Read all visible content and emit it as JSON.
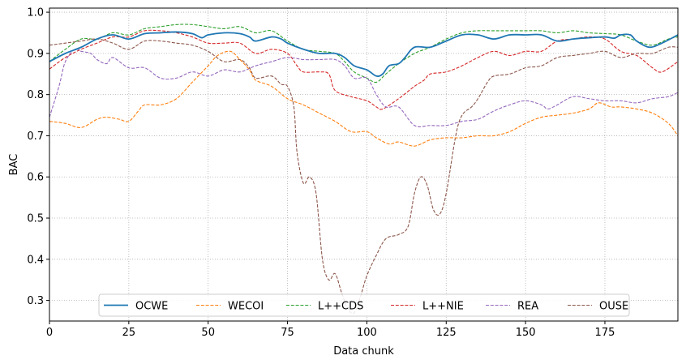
{
  "chart_data": {
    "type": "line",
    "xlabel": "Data chunk",
    "ylabel": "BAC",
    "xlim": [
      0,
      198
    ],
    "ylim": [
      0.25,
      1.01
    ],
    "xticks": [
      0,
      25,
      50,
      75,
      100,
      125,
      150,
      175
    ],
    "yticks": [
      0.3,
      0.4,
      0.5,
      0.6,
      0.7,
      0.8,
      0.9,
      1.0
    ],
    "xtick_labels": [
      "0",
      "25",
      "50",
      "75",
      "100",
      "125",
      "150",
      "175"
    ],
    "ytick_labels": [
      "0.3",
      "0.4",
      "0.5",
      "0.6",
      "0.7",
      "0.8",
      "0.9",
      "1.0"
    ],
    "grid": true,
    "legend_position": "bottom-center",
    "series": [
      {
        "name": "OCWE",
        "color": "#1f77b4",
        "dash": "solid",
        "points": [
          [
            0,
            0.88
          ],
          [
            5,
            0.9
          ],
          [
            10,
            0.915
          ],
          [
            15,
            0.935
          ],
          [
            20,
            0.945
          ],
          [
            25,
            0.935
          ],
          [
            30,
            0.948
          ],
          [
            35,
            0.95
          ],
          [
            40,
            0.952
          ],
          [
            45,
            0.948
          ],
          [
            48,
            0.938
          ],
          [
            50,
            0.945
          ],
          [
            55,
            0.95
          ],
          [
            60,
            0.948
          ],
          [
            63,
            0.94
          ],
          [
            65,
            0.93
          ],
          [
            70,
            0.94
          ],
          [
            73,
            0.935
          ],
          [
            75,
            0.925
          ],
          [
            80,
            0.91
          ],
          [
            85,
            0.9
          ],
          [
            90,
            0.9
          ],
          [
            93,
            0.89
          ],
          [
            96,
            0.87
          ],
          [
            100,
            0.86
          ],
          [
            103,
            0.845
          ],
          [
            105,
            0.85
          ],
          [
            107,
            0.87
          ],
          [
            110,
            0.875
          ],
          [
            112,
            0.89
          ],
          [
            115,
            0.915
          ],
          [
            120,
            0.915
          ],
          [
            125,
            0.93
          ],
          [
            130,
            0.945
          ],
          [
            135,
            0.945
          ],
          [
            140,
            0.935
          ],
          [
            145,
            0.945
          ],
          [
            150,
            0.945
          ],
          [
            155,
            0.945
          ],
          [
            160,
            0.93
          ],
          [
            165,
            0.935
          ],
          [
            170,
            0.938
          ],
          [
            175,
            0.94
          ],
          [
            178,
            0.937
          ],
          [
            180,
            0.945
          ],
          [
            183,
            0.945
          ],
          [
            185,
            0.93
          ],
          [
            189,
            0.915
          ],
          [
            193,
            0.925
          ],
          [
            198,
            0.945
          ]
        ]
      },
      {
        "name": "WECOI",
        "color": "#ff7f0e",
        "dash": "dashed",
        "points": [
          [
            0,
            0.735
          ],
          [
            5,
            0.73
          ],
          [
            10,
            0.72
          ],
          [
            15,
            0.74
          ],
          [
            18,
            0.745
          ],
          [
            22,
            0.74
          ],
          [
            25,
            0.735
          ],
          [
            28,
            0.76
          ],
          [
            30,
            0.775
          ],
          [
            35,
            0.775
          ],
          [
            40,
            0.79
          ],
          [
            45,
            0.83
          ],
          [
            50,
            0.87
          ],
          [
            53,
            0.895
          ],
          [
            57,
            0.905
          ],
          [
            60,
            0.885
          ],
          [
            63,
            0.86
          ],
          [
            65,
            0.835
          ],
          [
            70,
            0.82
          ],
          [
            75,
            0.79
          ],
          [
            80,
            0.775
          ],
          [
            85,
            0.755
          ],
          [
            90,
            0.735
          ],
          [
            95,
            0.71
          ],
          [
            100,
            0.71
          ],
          [
            103,
            0.695
          ],
          [
            107,
            0.68
          ],
          [
            110,
            0.685
          ],
          [
            115,
            0.675
          ],
          [
            120,
            0.69
          ],
          [
            125,
            0.695
          ],
          [
            130,
            0.695
          ],
          [
            135,
            0.7
          ],
          [
            140,
            0.7
          ],
          [
            145,
            0.71
          ],
          [
            150,
            0.73
          ],
          [
            155,
            0.745
          ],
          [
            160,
            0.75
          ],
          [
            165,
            0.755
          ],
          [
            170,
            0.765
          ],
          [
            173,
            0.78
          ],
          [
            177,
            0.77
          ],
          [
            180,
            0.77
          ],
          [
            185,
            0.765
          ],
          [
            190,
            0.755
          ],
          [
            195,
            0.73
          ],
          [
            198,
            0.7
          ]
        ]
      },
      {
        "name": "L++CDS",
        "color": "#2ca02c",
        "dash": "dashed",
        "points": [
          [
            0,
            0.88
          ],
          [
            5,
            0.91
          ],
          [
            10,
            0.935
          ],
          [
            15,
            0.935
          ],
          [
            20,
            0.95
          ],
          [
            25,
            0.945
          ],
          [
            30,
            0.96
          ],
          [
            35,
            0.965
          ],
          [
            40,
            0.97
          ],
          [
            45,
            0.97
          ],
          [
            50,
            0.965
          ],
          [
            55,
            0.96
          ],
          [
            60,
            0.965
          ],
          [
            65,
            0.95
          ],
          [
            70,
            0.955
          ],
          [
            75,
            0.93
          ],
          [
            80,
            0.91
          ],
          [
            85,
            0.905
          ],
          [
            90,
            0.9
          ],
          [
            93,
            0.88
          ],
          [
            96,
            0.855
          ],
          [
            100,
            0.84
          ],
          [
            103,
            0.83
          ],
          [
            106,
            0.85
          ],
          [
            110,
            0.875
          ],
          [
            115,
            0.9
          ],
          [
            120,
            0.915
          ],
          [
            125,
            0.935
          ],
          [
            130,
            0.95
          ],
          [
            135,
            0.955
          ],
          [
            140,
            0.955
          ],
          [
            145,
            0.955
          ],
          [
            150,
            0.955
          ],
          [
            155,
            0.955
          ],
          [
            160,
            0.95
          ],
          [
            165,
            0.955
          ],
          [
            170,
            0.95
          ],
          [
            175,
            0.948
          ],
          [
            180,
            0.945
          ],
          [
            185,
            0.93
          ],
          [
            190,
            0.92
          ],
          [
            195,
            0.935
          ],
          [
            198,
            0.94
          ]
        ]
      },
      {
        "name": "L++NIE",
        "color": "#d62728",
        "dash": "dashed",
        "points": [
          [
            0,
            0.862
          ],
          [
            5,
            0.89
          ],
          [
            10,
            0.91
          ],
          [
            15,
            0.925
          ],
          [
            20,
            0.94
          ],
          [
            25,
            0.94
          ],
          [
            30,
            0.955
          ],
          [
            35,
            0.955
          ],
          [
            40,
            0.95
          ],
          [
            45,
            0.94
          ],
          [
            50,
            0.925
          ],
          [
            55,
            0.925
          ],
          [
            60,
            0.925
          ],
          [
            65,
            0.9
          ],
          [
            70,
            0.91
          ],
          [
            75,
            0.9
          ],
          [
            78,
            0.87
          ],
          [
            80,
            0.855
          ],
          [
            85,
            0.855
          ],
          [
            88,
            0.85
          ],
          [
            90,
            0.81
          ],
          [
            95,
            0.795
          ],
          [
            100,
            0.785
          ],
          [
            103,
            0.77
          ],
          [
            105,
            0.765
          ],
          [
            110,
            0.79
          ],
          [
            115,
            0.82
          ],
          [
            118,
            0.835
          ],
          [
            120,
            0.85
          ],
          [
            125,
            0.855
          ],
          [
            130,
            0.87
          ],
          [
            135,
            0.89
          ],
          [
            140,
            0.905
          ],
          [
            145,
            0.895
          ],
          [
            150,
            0.905
          ],
          [
            155,
            0.905
          ],
          [
            160,
            0.93
          ],
          [
            165,
            0.935
          ],
          [
            170,
            0.94
          ],
          [
            175,
            0.935
          ],
          [
            180,
            0.905
          ],
          [
            185,
            0.895
          ],
          [
            190,
            0.865
          ],
          [
            193,
            0.855
          ],
          [
            198,
            0.88
          ]
        ]
      },
      {
        "name": "REA",
        "color": "#9467bd",
        "dash": "dashed",
        "points": [
          [
            0,
            0.745
          ],
          [
            3,
            0.82
          ],
          [
            5,
            0.88
          ],
          [
            8,
            0.91
          ],
          [
            10,
            0.905
          ],
          [
            13,
            0.9
          ],
          [
            15,
            0.885
          ],
          [
            18,
            0.875
          ],
          [
            20,
            0.89
          ],
          [
            25,
            0.865
          ],
          [
            30,
            0.865
          ],
          [
            35,
            0.84
          ],
          [
            40,
            0.84
          ],
          [
            45,
            0.855
          ],
          [
            50,
            0.845
          ],
          [
            55,
            0.86
          ],
          [
            60,
            0.855
          ],
          [
            65,
            0.87
          ],
          [
            70,
            0.88
          ],
          [
            75,
            0.89
          ],
          [
            80,
            0.885
          ],
          [
            85,
            0.885
          ],
          [
            90,
            0.885
          ],
          [
            93,
            0.87
          ],
          [
            96,
            0.84
          ],
          [
            100,
            0.84
          ],
          [
            103,
            0.8
          ],
          [
            106,
            0.77
          ],
          [
            110,
            0.77
          ],
          [
            115,
            0.725
          ],
          [
            120,
            0.725
          ],
          [
            125,
            0.725
          ],
          [
            130,
            0.735
          ],
          [
            135,
            0.74
          ],
          [
            140,
            0.76
          ],
          [
            145,
            0.775
          ],
          [
            150,
            0.785
          ],
          [
            155,
            0.775
          ],
          [
            157,
            0.765
          ],
          [
            160,
            0.775
          ],
          [
            165,
            0.795
          ],
          [
            170,
            0.79
          ],
          [
            175,
            0.785
          ],
          [
            180,
            0.785
          ],
          [
            185,
            0.78
          ],
          [
            190,
            0.79
          ],
          [
            195,
            0.795
          ],
          [
            198,
            0.805
          ]
        ]
      },
      {
        "name": "OUSE",
        "color": "#8c564b",
        "dash": "dashed",
        "points": [
          [
            0,
            0.92
          ],
          [
            5,
            0.925
          ],
          [
            10,
            0.93
          ],
          [
            15,
            0.935
          ],
          [
            20,
            0.925
          ],
          [
            25,
            0.91
          ],
          [
            30,
            0.93
          ],
          [
            35,
            0.93
          ],
          [
            40,
            0.925
          ],
          [
            45,
            0.92
          ],
          [
            50,
            0.905
          ],
          [
            55,
            0.88
          ],
          [
            60,
            0.885
          ],
          [
            63,
            0.865
          ],
          [
            65,
            0.84
          ],
          [
            70,
            0.845
          ],
          [
            73,
            0.825
          ],
          [
            75,
            0.82
          ],
          [
            77,
            0.77
          ],
          [
            78,
            0.66
          ],
          [
            80,
            0.585
          ],
          [
            82,
            0.6
          ],
          [
            84,
            0.56
          ],
          [
            86,
            0.4
          ],
          [
            88,
            0.35
          ],
          [
            90,
            0.365
          ],
          [
            92,
            0.32
          ],
          [
            94,
            0.28
          ],
          [
            96,
            0.27
          ],
          [
            98,
            0.31
          ],
          [
            100,
            0.36
          ],
          [
            103,
            0.41
          ],
          [
            106,
            0.45
          ],
          [
            110,
            0.46
          ],
          [
            113,
            0.48
          ],
          [
            115,
            0.56
          ],
          [
            117,
            0.6
          ],
          [
            119,
            0.58
          ],
          [
            121,
            0.52
          ],
          [
            123,
            0.51
          ],
          [
            125,
            0.56
          ],
          [
            128,
            0.7
          ],
          [
            130,
            0.75
          ],
          [
            133,
            0.77
          ],
          [
            135,
            0.79
          ],
          [
            138,
            0.83
          ],
          [
            140,
            0.845
          ],
          [
            145,
            0.85
          ],
          [
            150,
            0.865
          ],
          [
            155,
            0.87
          ],
          [
            160,
            0.89
          ],
          [
            165,
            0.895
          ],
          [
            170,
            0.9
          ],
          [
            175,
            0.905
          ],
          [
            180,
            0.89
          ],
          [
            185,
            0.9
          ],
          [
            190,
            0.9
          ],
          [
            195,
            0.915
          ],
          [
            198,
            0.915
          ]
        ]
      }
    ]
  }
}
